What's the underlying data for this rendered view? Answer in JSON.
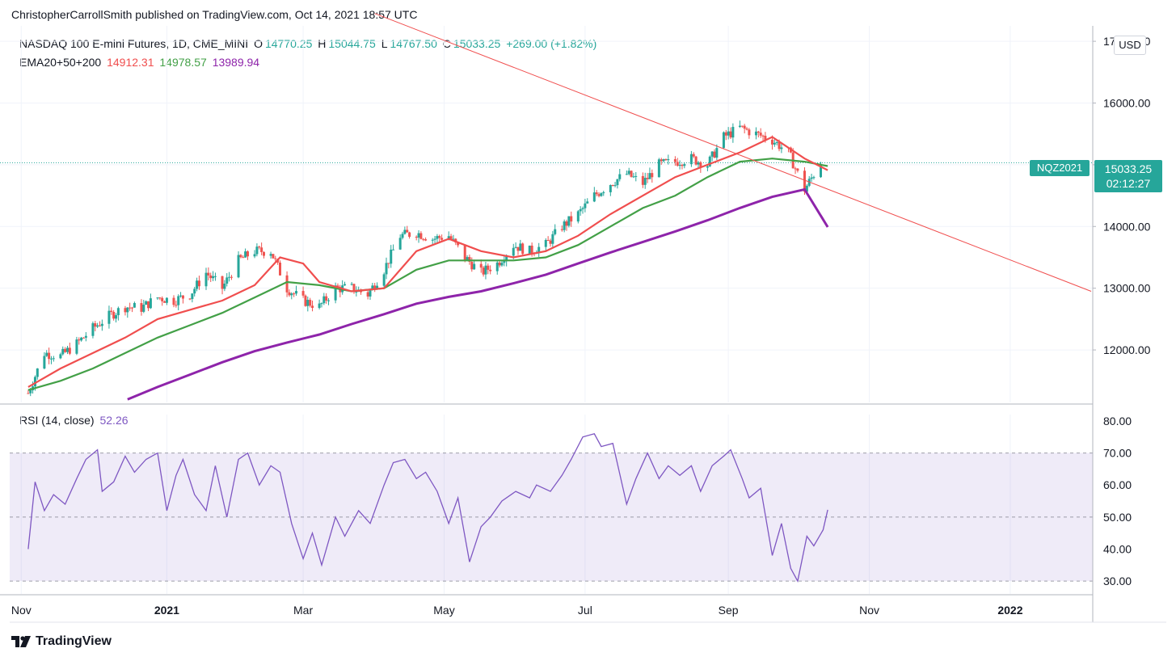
{
  "publisher_line": "ChristopherCarrollSmith published on TradingView.com, Oct 14, 2021 18:57 UTC",
  "brand": {
    "name": "TradingView",
    "logo_icon": "tradingview-logo-icon"
  },
  "currency_label": "USD",
  "colors": {
    "ema20": "#f04e4e",
    "ema50": "#43a047",
    "ema200": "#8e24aa",
    "rsi": "#7e57c2",
    "up": "#26a69a",
    "down": "#ef5350",
    "trendline": "#f04e4e",
    "tag_bg": "#26a69a"
  },
  "legend": {
    "title": "NASDAQ 100 E-mini Futures, 1D, CME_MINI",
    "o_label": "O",
    "o": "14770.25",
    "h_label": "H",
    "h": "15044.75",
    "l_label": "L",
    "l": "14767.50",
    "c_label": "C",
    "c": "15033.25",
    "change": "+269.00 (+1.82%)",
    "ema_label": "EMA20+50+200",
    "ema20": "14912.31",
    "ema50": "14978.57",
    "ema200": "13989.94"
  },
  "rsi_legend": {
    "label": "RSI (14, close)",
    "value": "52.26"
  },
  "price_tag": {
    "symbol": "NQZ2021",
    "price": "15033.25",
    "countdown": "02:12:27"
  },
  "chart_data": [
    {
      "type": "candlestick",
      "title": "NASDAQ 100 E-mini Futures, 1D, CME_MINI",
      "price_axis": {
        "ticks": [
          12000,
          13000,
          14000,
          15000,
          16000,
          17000
        ],
        "tick_labels": [
          "12000.00",
          "13000.00",
          "14000.00",
          "",
          "16000.00",
          "17000.00"
        ],
        "range": [
          11200,
          17300
        ],
        "last_price": 15033.25
      },
      "time_axis": {
        "labels": [
          "Nov",
          "2021",
          "Mar",
          "May",
          "Jul",
          "Sep",
          "Nov",
          "2022"
        ],
        "bold": [
          "2021",
          "2022"
        ]
      },
      "close_path": [
        [
          "2020-11-02",
          11300
        ],
        [
          "2020-11-09",
          11950
        ],
        [
          "2020-11-16",
          11900
        ],
        [
          "2020-11-23",
          12100
        ],
        [
          "2020-11-30",
          12350
        ],
        [
          "2020-12-07",
          12550
        ],
        [
          "2020-12-14",
          12700
        ],
        [
          "2020-12-21",
          12680
        ],
        [
          "2020-12-28",
          12850
        ],
        [
          "2021-01-04",
          12800
        ],
        [
          "2021-01-11",
          12900
        ],
        [
          "2021-01-18",
          13250
        ],
        [
          "2021-01-25",
          13000
        ],
        [
          "2021-02-01",
          13450
        ],
        [
          "2021-02-08",
          13600
        ],
        [
          "2021-02-15",
          13600
        ],
        [
          "2021-02-22",
          13000
        ],
        [
          "2021-03-01",
          12800
        ],
        [
          "2021-03-08",
          12700
        ],
        [
          "2021-03-15",
          13000
        ],
        [
          "2021-03-22",
          13000
        ],
        [
          "2021-03-29",
          12900
        ],
        [
          "2021-04-05",
          13300
        ],
        [
          "2021-04-12",
          13850
        ],
        [
          "2021-04-19",
          13900
        ],
        [
          "2021-04-26",
          13800
        ],
        [
          "2021-05-03",
          13850
        ],
        [
          "2021-05-10",
          13500
        ],
        [
          "2021-05-17",
          13250
        ],
        [
          "2021-05-24",
          13400
        ],
        [
          "2021-05-31",
          13700
        ],
        [
          "2021-06-07",
          13600
        ],
        [
          "2021-06-14",
          13700
        ],
        [
          "2021-06-21",
          14000
        ],
        [
          "2021-06-28",
          14200
        ],
        [
          "2021-07-05",
          14500
        ],
        [
          "2021-07-12",
          14700
        ],
        [
          "2021-07-19",
          14850
        ],
        [
          "2021-07-26",
          14700
        ],
        [
          "2021-08-02",
          15000
        ],
        [
          "2021-08-09",
          15050
        ],
        [
          "2021-08-16",
          15100
        ],
        [
          "2021-08-23",
          15000
        ],
        [
          "2021-08-30",
          15450
        ],
        [
          "2021-09-06",
          15600
        ],
        [
          "2021-09-13",
          15500
        ],
        [
          "2021-09-20",
          15400
        ],
        [
          "2021-09-27",
          15200
        ],
        [
          "2021-10-04",
          14600
        ],
        [
          "2021-10-11",
          15033.25
        ]
      ],
      "ema20": [
        [
          "2020-11-02",
          11400
        ],
        [
          "2020-11-16",
          11700
        ],
        [
          "2020-11-30",
          11950
        ],
        [
          "2020-12-14",
          12200
        ],
        [
          "2020-12-28",
          12500
        ],
        [
          "2021-01-11",
          12650
        ],
        [
          "2021-01-25",
          12800
        ],
        [
          "2021-02-08",
          13050
        ],
        [
          "2021-02-19",
          13500
        ],
        [
          "2021-03-01",
          13400
        ],
        [
          "2021-03-08",
          13100
        ],
        [
          "2021-03-22",
          12950
        ],
        [
          "2021-04-05",
          13000
        ],
        [
          "2021-04-19",
          13600
        ],
        [
          "2021-05-03",
          13800
        ],
        [
          "2021-05-17",
          13600
        ],
        [
          "2021-05-31",
          13500
        ],
        [
          "2021-06-14",
          13600
        ],
        [
          "2021-06-28",
          13850
        ],
        [
          "2021-07-12",
          14200
        ],
        [
          "2021-07-26",
          14500
        ],
        [
          "2021-08-09",
          14800
        ],
        [
          "2021-08-23",
          15000
        ],
        [
          "2021-09-06",
          15200
        ],
        [
          "2021-09-20",
          15450
        ],
        [
          "2021-10-04",
          15100
        ],
        [
          "2021-10-14",
          14912.31
        ]
      ],
      "ema50": [
        [
          "2020-11-02",
          11350
        ],
        [
          "2020-11-16",
          11500
        ],
        [
          "2020-11-30",
          11700
        ],
        [
          "2020-12-14",
          11950
        ],
        [
          "2020-12-28",
          12200
        ],
        [
          "2021-01-11",
          12400
        ],
        [
          "2021-01-25",
          12600
        ],
        [
          "2021-02-08",
          12850
        ],
        [
          "2021-02-22",
          13100
        ],
        [
          "2021-03-08",
          13050
        ],
        [
          "2021-03-22",
          12950
        ],
        [
          "2021-04-05",
          13000
        ],
        [
          "2021-04-19",
          13300
        ],
        [
          "2021-05-03",
          13450
        ],
        [
          "2021-05-17",
          13450
        ],
        [
          "2021-05-31",
          13450
        ],
        [
          "2021-06-14",
          13500
        ],
        [
          "2021-06-28",
          13700
        ],
        [
          "2021-07-12",
          14000
        ],
        [
          "2021-07-26",
          14300
        ],
        [
          "2021-08-09",
          14500
        ],
        [
          "2021-08-23",
          14800
        ],
        [
          "2021-09-06",
          15050
        ],
        [
          "2021-09-20",
          15100
        ],
        [
          "2021-10-04",
          15050
        ],
        [
          "2021-10-14",
          14978.57
        ]
      ],
      "ema200": [
        [
          "2020-12-15",
          11200
        ],
        [
          "2020-12-28",
          11400
        ],
        [
          "2021-01-11",
          11600
        ],
        [
          "2021-01-25",
          11800
        ],
        [
          "2021-02-08",
          11980
        ],
        [
          "2021-02-22",
          12120
        ],
        [
          "2021-03-08",
          12250
        ],
        [
          "2021-03-22",
          12420
        ],
        [
          "2021-04-05",
          12580
        ],
        [
          "2021-04-19",
          12750
        ],
        [
          "2021-05-03",
          12860
        ],
        [
          "2021-05-17",
          12950
        ],
        [
          "2021-05-31",
          13080
        ],
        [
          "2021-06-14",
          13220
        ],
        [
          "2021-06-28",
          13400
        ],
        [
          "2021-07-12",
          13580
        ],
        [
          "2021-07-26",
          13750
        ],
        [
          "2021-08-09",
          13920
        ],
        [
          "2021-08-23",
          14100
        ],
        [
          "2021-09-06",
          14300
        ],
        [
          "2021-09-20",
          14480
        ],
        [
          "2021-10-04",
          14600
        ],
        [
          "2021-10-14",
          13989.94
        ]
      ],
      "trendline": [
        [
          "2021-04-01",
          17450
        ],
        [
          "2022-02-05",
          12950
        ]
      ]
    },
    {
      "type": "line",
      "title": "RSI (14, close)",
      "y_ticks": [
        30,
        40,
        50,
        60,
        70,
        80
      ],
      "y_tick_labels": [
        "30.00",
        "40.00",
        "50.00",
        "60.00",
        "70.00",
        "80.00"
      ],
      "ylim": [
        25,
        82
      ],
      "band": [
        30,
        70
      ],
      "midline": 50,
      "values": [
        [
          "2020-11-02",
          40
        ],
        [
          "2020-11-05",
          61
        ],
        [
          "2020-11-09",
          52
        ],
        [
          "2020-11-13",
          57
        ],
        [
          "2020-11-18",
          54
        ],
        [
          "2020-11-23",
          62
        ],
        [
          "2020-11-27",
          68
        ],
        [
          "2020-12-02",
          71
        ],
        [
          "2020-12-04",
          58
        ],
        [
          "2020-12-09",
          61
        ],
        [
          "2020-12-14",
          69
        ],
        [
          "2020-12-18",
          64
        ],
        [
          "2020-12-23",
          68
        ],
        [
          "2020-12-28",
          70
        ],
        [
          "2021-01-01",
          52
        ],
        [
          "2021-01-05",
          63
        ],
        [
          "2021-01-08",
          68
        ],
        [
          "2021-01-13",
          57
        ],
        [
          "2021-01-18",
          52
        ],
        [
          "2021-01-22",
          66
        ],
        [
          "2021-01-27",
          50
        ],
        [
          "2021-02-01",
          68
        ],
        [
          "2021-02-05",
          70
        ],
        [
          "2021-02-10",
          60
        ],
        [
          "2021-02-15",
          66
        ],
        [
          "2021-02-19",
          64
        ],
        [
          "2021-02-24",
          48
        ],
        [
          "2021-03-01",
          37
        ],
        [
          "2021-03-05",
          45
        ],
        [
          "2021-03-09",
          35
        ],
        [
          "2021-03-15",
          50
        ],
        [
          "2021-03-19",
          44
        ],
        [
          "2021-03-25",
          52
        ],
        [
          "2021-03-30",
          48
        ],
        [
          "2021-04-05",
          60
        ],
        [
          "2021-04-09",
          67
        ],
        [
          "2021-04-14",
          68
        ],
        [
          "2021-04-19",
          62
        ],
        [
          "2021-04-23",
          64
        ],
        [
          "2021-04-28",
          58
        ],
        [
          "2021-05-03",
          48
        ],
        [
          "2021-05-07",
          56
        ],
        [
          "2021-05-12",
          36
        ],
        [
          "2021-05-17",
          47
        ],
        [
          "2021-05-21",
          50
        ],
        [
          "2021-05-26",
          55
        ],
        [
          "2021-06-01",
          58
        ],
        [
          "2021-06-07",
          56
        ],
        [
          "2021-06-10",
          60
        ],
        [
          "2021-06-16",
          58
        ],
        [
          "2021-06-21",
          63
        ],
        [
          "2021-06-25",
          68
        ],
        [
          "2021-06-30",
          75
        ],
        [
          "2021-07-05",
          76
        ],
        [
          "2021-07-08",
          72
        ],
        [
          "2021-07-13",
          73
        ],
        [
          "2021-07-19",
          54
        ],
        [
          "2021-07-23",
          62
        ],
        [
          "2021-07-28",
          70
        ],
        [
          "2021-08-02",
          62
        ],
        [
          "2021-08-06",
          66
        ],
        [
          "2021-08-11",
          63
        ],
        [
          "2021-08-16",
          66
        ],
        [
          "2021-08-20",
          58
        ],
        [
          "2021-08-25",
          66
        ],
        [
          "2021-08-30",
          69
        ],
        [
          "2021-09-02",
          71
        ],
        [
          "2021-09-07",
          62
        ],
        [
          "2021-09-10",
          56
        ],
        [
          "2021-09-15",
          59
        ],
        [
          "2021-09-20",
          38
        ],
        [
          "2021-09-24",
          48
        ],
        [
          "2021-09-28",
          34
        ],
        [
          "2021-10-01",
          30
        ],
        [
          "2021-10-05",
          44
        ],
        [
          "2021-10-08",
          41
        ],
        [
          "2021-10-12",
          46
        ],
        [
          "2021-10-14",
          52.26
        ]
      ]
    }
  ]
}
